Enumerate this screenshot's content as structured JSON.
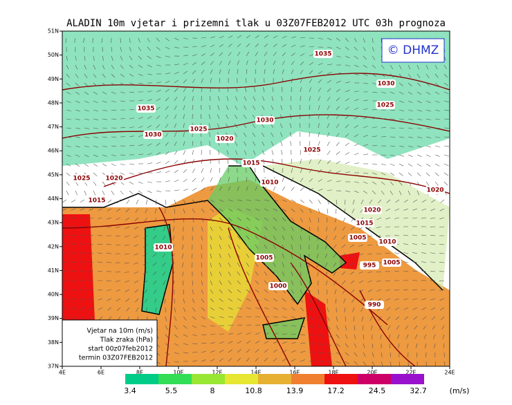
{
  "title": "ALADIN 10m vjetar i prizemni tlak u 03Z07FEB2012 UTC 03h prognoza",
  "copyright": "© DHMZ",
  "lon_labels": [
    "4E",
    "6E",
    "8E",
    "10E",
    "12E",
    "14E",
    "16E",
    "18E",
    "20E",
    "22E",
    "24E"
  ],
  "lat_labels": [
    "37N",
    "38N",
    "39N",
    "40N",
    "41N",
    "42N",
    "43N",
    "44N",
    "45N",
    "46N",
    "47N",
    "48N",
    "49N",
    "50N",
    "51N"
  ],
  "isobar_labels": [
    "1035",
    "1030",
    "1025",
    "1035",
    "1030",
    "1030",
    "1025",
    "1020",
    "1025",
    "1015",
    "1010",
    "1025",
    "1020",
    "1015",
    "1020",
    "1015",
    "1005",
    "1010",
    "1010",
    "1005",
    "995",
    "1005",
    "1000",
    "990",
    "1020"
  ],
  "info_box": [
    "Vjetar na 10m (m/s)",
    "Tlak zraka (hPa)",
    "start 00z07feb2012",
    "termin 03Z07FEB2012"
  ],
  "colorbar": {
    "colors": [
      "#00cc88",
      "#33dd55",
      "#99e633",
      "#e6e633",
      "#e6b033",
      "#f08030",
      "#ee1111",
      "#cc0066",
      "#9911cc"
    ],
    "labels": [
      "3.4",
      "5.5",
      "8",
      "10.8",
      "13.9",
      "17.2",
      "24.5",
      "32.7",
      "(m/s)"
    ]
  }
}
